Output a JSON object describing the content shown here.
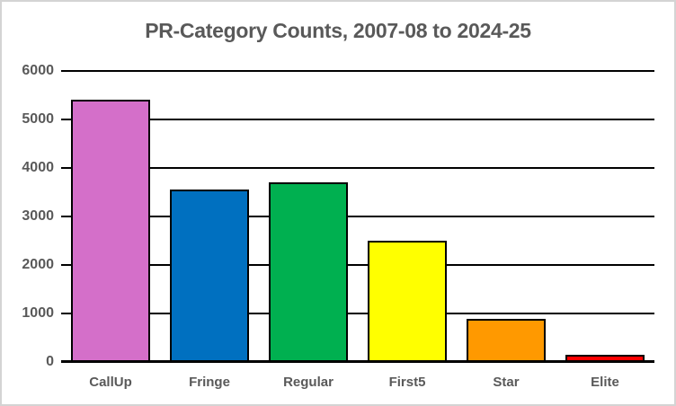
{
  "frame": {
    "background": "#FFFFFF",
    "border_color": "#D4D4D4"
  },
  "chart_data": {
    "type": "bar",
    "title": "PR-Category Counts, 2007-08 to 2024-25",
    "categories": [
      "CallUp",
      "Fringe",
      "Regular",
      "First5",
      "Star",
      "Elite"
    ],
    "values": [
      5400,
      3550,
      3700,
      2500,
      880,
      150
    ],
    "bar_colors": [
      "#D46FC9",
      "#0070C0",
      "#00B050",
      "#FFFF00",
      "#FF9900",
      "#FF0000"
    ],
    "bar_border_color": "#000000",
    "xlabel": "",
    "ylabel": "",
    "ylim": [
      0,
      6000
    ],
    "yticks": [
      0,
      1000,
      2000,
      3000,
      4000,
      5000,
      6000
    ],
    "grid": true,
    "gridline_color": "#000000",
    "legend": false,
    "text_color": "#595959"
  }
}
